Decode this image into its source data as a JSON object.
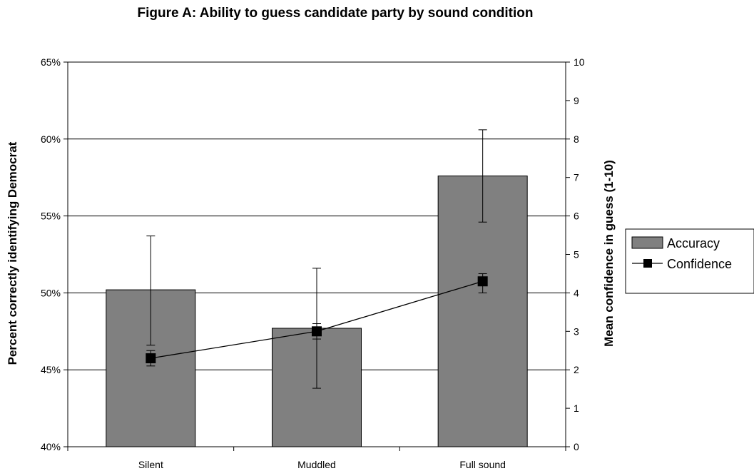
{
  "chart_data": {
    "type": "bar",
    "title": "Figure A: Ability to guess candidate party by sound condition",
    "categories": [
      "Silent",
      "Muddled",
      "Full sound"
    ],
    "ylabel": "Percent correctly identifying Democrat",
    "ylabel_right": "Mean confidence in guess (1-10)",
    "xlabel": "",
    "ylim": [
      40,
      65
    ],
    "ylim_right": [
      0,
      10
    ],
    "yticks": [
      "40%",
      "45%",
      "50%",
      "55%",
      "60%",
      "65%"
    ],
    "yticks_right": [
      "0",
      "1",
      "2",
      "3",
      "4",
      "5",
      "6",
      "7",
      "8",
      "9",
      "10"
    ],
    "grid": true,
    "legend_position": "right",
    "series": [
      {
        "name": "Accuracy",
        "type": "bar",
        "axis": "left",
        "color": "#808080",
        "values": [
          50.2,
          47.7,
          57.6
        ],
        "error_low": [
          46.6,
          43.8,
          54.6
        ],
        "error_high": [
          53.7,
          51.6,
          60.6
        ]
      },
      {
        "name": "Confidence",
        "type": "line",
        "axis": "right",
        "color": "#000000",
        "values": [
          2.3,
          3.0,
          4.3
        ],
        "error_low": [
          2.1,
          2.8,
          4.0
        ],
        "error_high": [
          2.5,
          3.2,
          4.5
        ]
      }
    ]
  }
}
